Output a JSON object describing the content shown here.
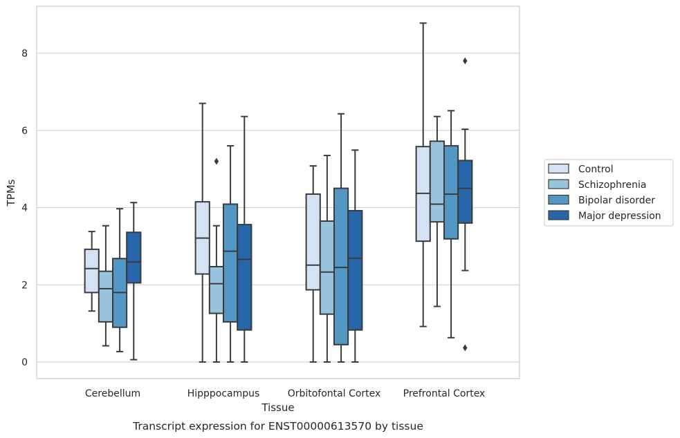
{
  "chart_data": {
    "type": "box",
    "xlabel": "Tissue",
    "ylabel": "TPMs",
    "ylim": [
      -0.4,
      9.2
    ],
    "yticks": [
      0,
      2,
      4,
      6,
      8
    ],
    "grid": "horizontal",
    "legend_position": "right",
    "categories": [
      "Cerebellum",
      "Hipppocampus",
      "Orbitofontal Cortex",
      "Prefrontal Cortex"
    ],
    "series": [
      {
        "name": "Control",
        "color": "#d3e3f3",
        "boxes": [
          {
            "whisker_low": 1.32,
            "q1": 1.8,
            "median": 2.42,
            "q3": 2.92,
            "whisker_high": 3.38,
            "outliers": []
          },
          {
            "whisker_low": 0.0,
            "q1": 2.28,
            "median": 3.21,
            "q3": 4.15,
            "whisker_high": 6.7,
            "outliers": []
          },
          {
            "whisker_low": 0.0,
            "q1": 1.87,
            "median": 2.51,
            "q3": 4.35,
            "whisker_high": 5.08,
            "outliers": []
          },
          {
            "whisker_low": 0.92,
            "q1": 3.13,
            "median": 4.37,
            "q3": 5.58,
            "whisker_high": 8.78,
            "outliers": []
          }
        ]
      },
      {
        "name": "Schizophrenia",
        "color": "#9ac4de",
        "boxes": [
          {
            "whisker_low": 0.42,
            "q1": 1.04,
            "median": 1.9,
            "q3": 2.35,
            "whisker_high": 3.53,
            "outliers": []
          },
          {
            "whisker_low": 0.0,
            "q1": 1.26,
            "median": 2.03,
            "q3": 2.47,
            "whisker_high": 3.53,
            "outliers": [
              5.2
            ]
          },
          {
            "whisker_low": 0.0,
            "q1": 1.24,
            "median": 2.33,
            "q3": 3.65,
            "whisker_high": 5.35,
            "outliers": []
          },
          {
            "whisker_low": 1.44,
            "q1": 3.63,
            "median": 4.09,
            "q3": 5.72,
            "whisker_high": 6.36,
            "outliers": []
          }
        ]
      },
      {
        "name": "Bipolar disorder",
        "color": "#5496c4",
        "boxes": [
          {
            "whisker_low": 0.27,
            "q1": 0.9,
            "median": 1.8,
            "q3": 2.68,
            "whisker_high": 3.97,
            "outliers": []
          },
          {
            "whisker_low": 0.0,
            "q1": 1.04,
            "median": 2.87,
            "q3": 4.09,
            "whisker_high": 5.6,
            "outliers": []
          },
          {
            "whisker_low": 0.0,
            "q1": 0.45,
            "median": 2.45,
            "q3": 4.5,
            "whisker_high": 6.43,
            "outliers": []
          },
          {
            "whisker_low": 0.63,
            "q1": 3.19,
            "median": 4.35,
            "q3": 5.6,
            "whisker_high": 6.51,
            "outliers": []
          }
        ]
      },
      {
        "name": "Major depression",
        "color": "#2767a9",
        "boxes": [
          {
            "whisker_low": 0.06,
            "q1": 2.05,
            "median": 2.59,
            "q3": 3.36,
            "whisker_high": 4.13,
            "outliers": []
          },
          {
            "whisker_low": 0.0,
            "q1": 0.83,
            "median": 2.66,
            "q3": 3.56,
            "whisker_high": 6.36,
            "outliers": []
          },
          {
            "whisker_low": 0.0,
            "q1": 0.83,
            "median": 2.69,
            "q3": 3.92,
            "whisker_high": 5.49,
            "outliers": []
          },
          {
            "whisker_low": 2.37,
            "q1": 3.6,
            "median": 4.5,
            "q3": 5.22,
            "whisker_high": 6.03,
            "outliers": [
              7.8,
              0.37
            ]
          }
        ]
      }
    ]
  },
  "caption": "Transcript expression for ENST00000613570 by tissue"
}
